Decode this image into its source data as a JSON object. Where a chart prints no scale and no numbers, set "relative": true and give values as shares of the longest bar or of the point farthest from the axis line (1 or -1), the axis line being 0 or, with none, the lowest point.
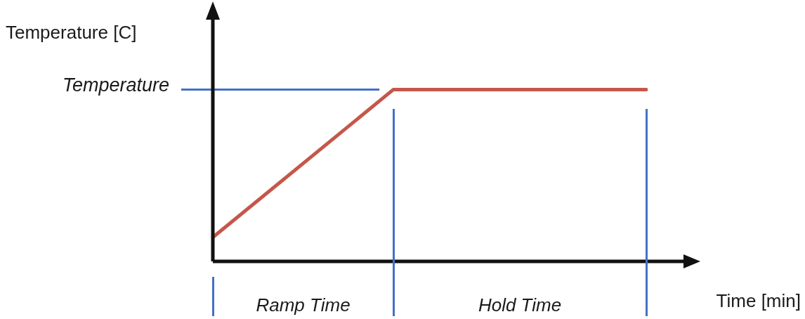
{
  "chart_data": {
    "type": "line",
    "relative": true,
    "xlabel": "Time [min]",
    "ylabel": "Temperature [C]",
    "categories": [
      null,
      null,
      null,
      null,
      null,
      null,
      null,
      null,
      null,
      null,
      null,
      null,
      null
    ],
    "series": [
      {
        "color": "#c5574a",
        "values": [
          0.14,
          null,
          null,
          null,
          null,
          1,
          null,
          null,
          null,
          null,
          null,
          null,
          1
        ]
      }
    ],
    "ref_lines": [
      {
        "axis": "y",
        "value": 1,
        "label": "Temperature",
        "color": "#4472c4"
      }
    ],
    "annotations": [
      "Ramp Time",
      "Hold Time"
    ],
    "grid": false,
    "legend": false,
    "marker": "none",
    "line_style": "solid"
  }
}
